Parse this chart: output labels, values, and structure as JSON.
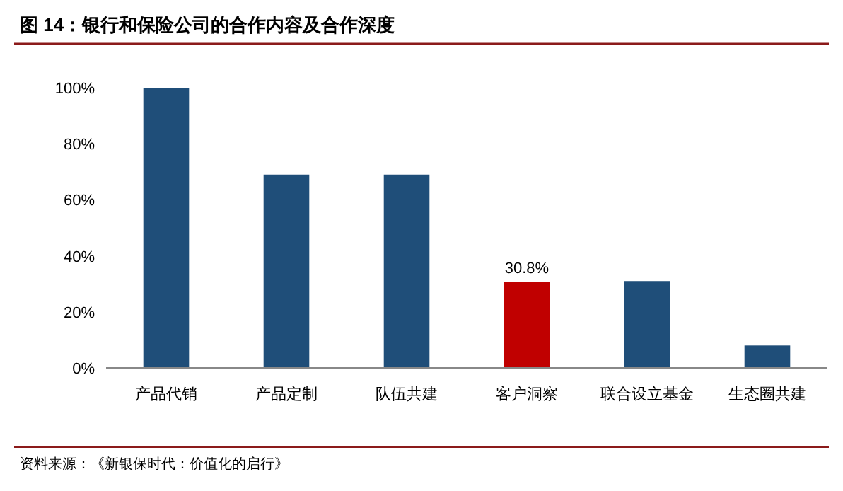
{
  "chart_data": {
    "type": "bar",
    "title": "图 14：银行和保险公司的合作内容及合作深度",
    "categories": [
      "产品代销",
      "产品定制",
      "队伍共建",
      "客户洞察",
      "联合设立基金",
      "生态圈共建"
    ],
    "values": [
      100,
      69,
      69,
      30.8,
      31,
      8
    ],
    "colors": [
      "#1f4e79",
      "#1f4e79",
      "#1f4e79",
      "#c00000",
      "#1f4e79",
      "#1f4e79"
    ],
    "value_labels": [
      null,
      null,
      null,
      "30.8%",
      null,
      null
    ],
    "ylim": [
      0,
      100
    ],
    "yticks": [
      {
        "value": 0,
        "label": "0%"
      },
      {
        "value": 20,
        "label": "20%"
      },
      {
        "value": 40,
        "label": "40%"
      },
      {
        "value": 60,
        "label": "60%"
      },
      {
        "value": 80,
        "label": "80%"
      },
      {
        "value": 100,
        "label": "100%"
      }
    ],
    "grid": false,
    "annotations": [
      "资料来源：《新银保时代：价值化的启行》"
    ]
  }
}
